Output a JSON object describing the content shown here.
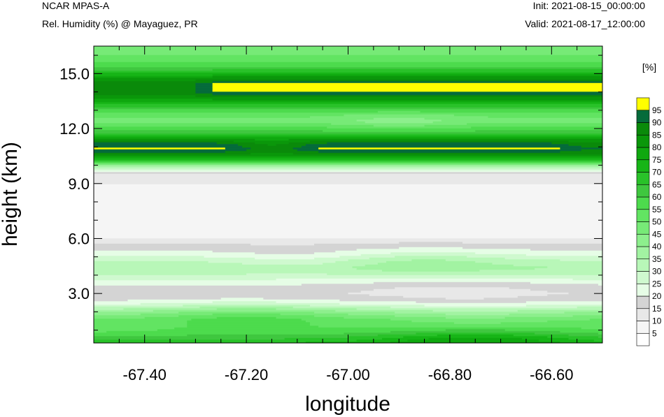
{
  "header": {
    "model": "NCAR MPAS-A",
    "field": "Rel. Humidity (%) @ Mayaguez, PR",
    "init": "Init: 2021-08-15_00:00:00",
    "valid": "Valid: 2021-08-17_12:00:00"
  },
  "chart_data": {
    "type": "heatmap",
    "xlabel": "longitude",
    "ylabel": "height (km)",
    "xlim": [
      -67.5,
      -66.5
    ],
    "ylim": [
      0.3,
      16.5
    ],
    "x_ticks": [
      -67.4,
      -67.2,
      -67.0,
      -66.8,
      -66.6
    ],
    "x_tick_labels": [
      "-67.40",
      "-67.20",
      "-67.00",
      "-66.80",
      "-66.60"
    ],
    "y_ticks": [
      3,
      6,
      9,
      12,
      15
    ],
    "y_tick_labels": [
      "3.0",
      "6.0",
      "9.0",
      "12.0",
      "15.0"
    ],
    "colorbar": {
      "unit": "[%]",
      "levels": [
        5,
        10,
        15,
        20,
        25,
        30,
        35,
        40,
        45,
        50,
        55,
        60,
        65,
        70,
        75,
        80,
        85,
        90,
        95
      ],
      "labels": [
        "5",
        "10",
        "15",
        "20",
        "25",
        "30",
        "35",
        "40",
        "45",
        "50",
        "55",
        "60",
        "65",
        "70",
        "75",
        "80",
        "85",
        "90",
        "95"
      ],
      "colors": [
        "#ffffff",
        "#f5f5f5",
        "#e8e8e8",
        "#d4d4d4",
        "#e6fde6",
        "#cff9cf",
        "#b8f7b8",
        "#a2f3a2",
        "#8def8d",
        "#77ea77",
        "#62e462",
        "#4ddb4d",
        "#3fc73f",
        "#29c229",
        "#17b517",
        "#0fa80f",
        "#0a970a",
        "#0a8a0a",
        "#056b3b",
        "#ffff00"
      ]
    },
    "profile": {
      "heights_km": [
        0.3,
        0.6,
        0.9,
        1.2,
        1.6,
        2.0,
        2.4,
        2.7,
        3.0,
        3.3,
        3.6,
        4.0,
        4.4,
        4.8,
        5.2,
        5.5,
        5.8,
        6.2,
        6.8,
        7.5,
        8.3,
        9.0,
        9.5,
        10.0,
        10.3,
        10.6,
        10.9,
        11.2,
        11.5,
        11.8,
        12.1,
        12.4,
        12.8,
        13.2,
        13.6,
        13.9,
        14.2,
        14.5,
        14.8,
        15.1,
        15.4,
        15.8,
        16.2,
        16.5
      ],
      "rh_percent": [
        70,
        62,
        55,
        52,
        50,
        40,
        25,
        18,
        16,
        18,
        22,
        30,
        35,
        30,
        22,
        18,
        14,
        7,
        6,
        6,
        7,
        10,
        15,
        40,
        70,
        85,
        93,
        88,
        78,
        62,
        55,
        48,
        52,
        65,
        80,
        90,
        93,
        90,
        80,
        68,
        60,
        52,
        48,
        45
      ]
    }
  }
}
